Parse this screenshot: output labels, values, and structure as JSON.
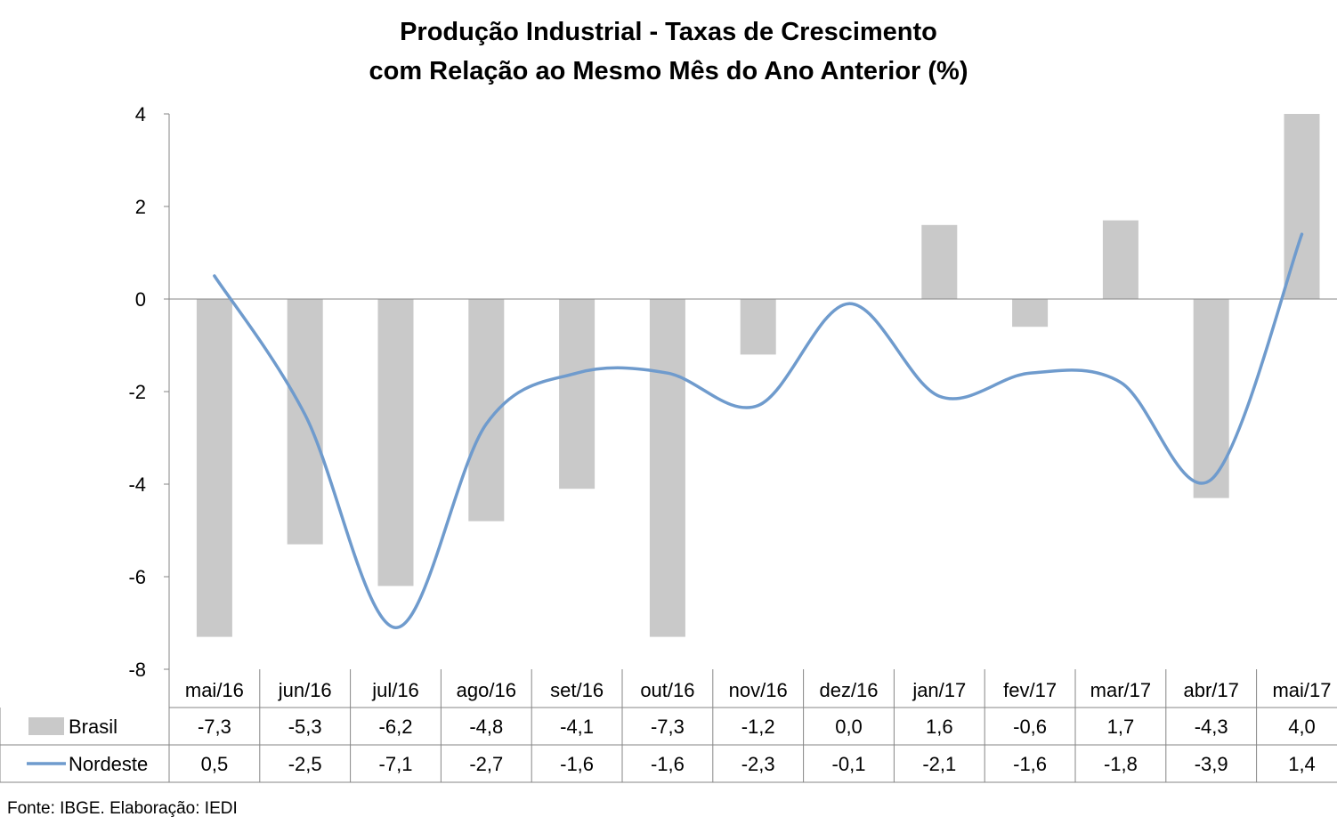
{
  "chart_data": {
    "type": "bar",
    "title_line1": "Produção Industrial - Taxas de Crescimento",
    "title_line2": "com Relação ao Mesmo Mês do Ano Anterior (%)",
    "categories": [
      "mai/16",
      "jun/16",
      "jul/16",
      "ago/16",
      "set/16",
      "out/16",
      "nov/16",
      "dez/16",
      "jan/17",
      "fev/17",
      "mar/17",
      "abr/17",
      "mai/17"
    ],
    "series": [
      {
        "name": "Brasil",
        "kind": "bar",
        "color": "#c9c9c9",
        "values": [
          -7.3,
          -5.3,
          -6.2,
          -4.8,
          -4.1,
          -7.3,
          -1.2,
          0.0,
          1.6,
          -0.6,
          1.7,
          -4.3,
          4.0
        ],
        "labels": [
          "-7,3",
          "-5,3",
          "-6,2",
          "-4,8",
          "-4,1",
          "-7,3",
          "-1,2",
          "0,0",
          "1,6",
          "-0,6",
          "1,7",
          "-4,3",
          "4,0"
        ]
      },
      {
        "name": "Nordeste",
        "kind": "line",
        "color": "#6f9bcd",
        "values": [
          0.5,
          -2.5,
          -7.1,
          -2.7,
          -1.6,
          -1.6,
          -2.3,
          -0.1,
          -2.1,
          -1.6,
          -1.8,
          -3.9,
          1.4
        ],
        "labels": [
          "0,5",
          "-2,5",
          "-7,1",
          "-2,7",
          "-1,6",
          "-1,6",
          "-2,3",
          "-0,1",
          "-2,1",
          "-1,6",
          "-1,8",
          "-3,9",
          "1,4"
        ]
      }
    ],
    "ylim": [
      -8,
      4
    ],
    "yticks": [
      4,
      2,
      0,
      -2,
      -4,
      -6,
      -8
    ],
    "grid": false,
    "legend": "data-table"
  },
  "source_note": "Fonte: IBGE. Elaboração: IEDI"
}
